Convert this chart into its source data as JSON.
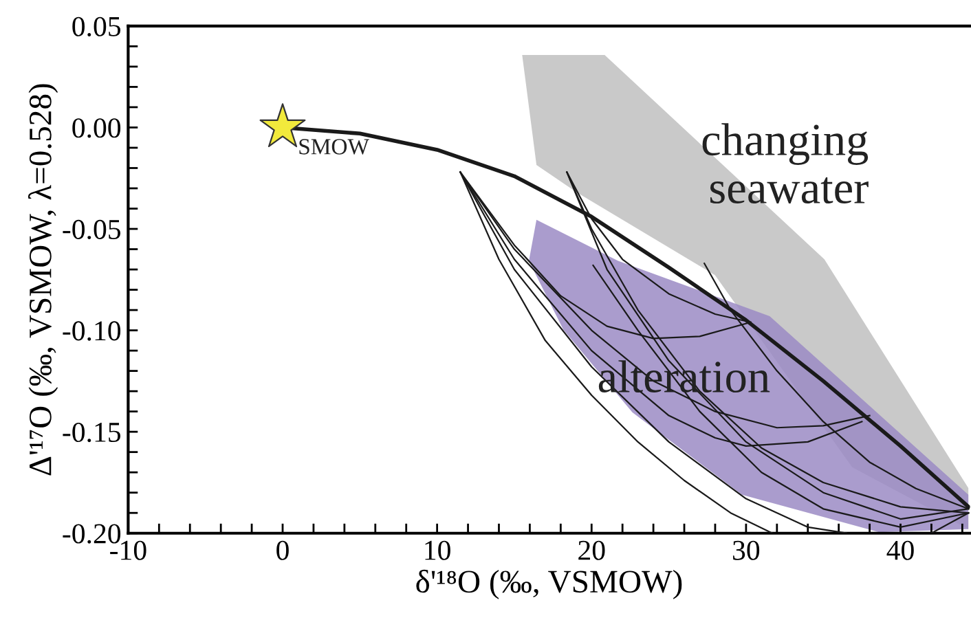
{
  "chart_data": {
    "type": "line",
    "xlabel": "δ'¹⁸O (‰, VSMOW)",
    "ylabel": "Δ'¹⁷O (‰, VSMOW, λ=0.528)",
    "xlim": [
      -10,
      44.5
    ],
    "ylim": [
      -0.2,
      0.05
    ],
    "xticks": [
      -10,
      {
        "value": -8,
        "label": null
      },
      {
        "value": -6,
        "label": null
      },
      {
        "value": -4,
        "label": null
      },
      {
        "value": -2,
        "label": null
      },
      0,
      {
        "value": 2,
        "label": null
      },
      {
        "value": 4,
        "label": null
      },
      {
        "value": 6,
        "label": null
      },
      {
        "value": 8,
        "label": null
      },
      10,
      {
        "value": 12,
        "label": null
      },
      {
        "value": 14,
        "label": null
      },
      {
        "value": 16,
        "label": null
      },
      {
        "value": 18,
        "label": null
      },
      20,
      {
        "value": 22,
        "label": null
      },
      {
        "value": 24,
        "label": null
      },
      {
        "value": 26,
        "label": null
      },
      {
        "value": 28,
        "label": null
      },
      30,
      {
        "value": 32,
        "label": null
      },
      {
        "value": 34,
        "label": null
      },
      {
        "value": 36,
        "label": null
      },
      {
        "value": 38,
        "label": null
      },
      40,
      {
        "value": 42,
        "label": null
      },
      {
        "value": 44,
        "label": null
      }
    ],
    "yticks": [
      {
        "value": -0.2,
        "label": "-0.20"
      },
      {
        "value": -0.19,
        "label": null
      },
      {
        "value": -0.18,
        "label": null
      },
      {
        "value": -0.17,
        "label": null
      },
      {
        "value": -0.16,
        "label": null
      },
      {
        "value": -0.15,
        "label": "-0.15"
      },
      {
        "value": -0.14,
        "label": null
      },
      {
        "value": -0.13,
        "label": null
      },
      {
        "value": -0.12,
        "label": null
      },
      {
        "value": -0.11,
        "label": null
      },
      {
        "value": -0.1,
        "label": "-0.10"
      },
      {
        "value": -0.09,
        "label": null
      },
      {
        "value": -0.08,
        "label": null
      },
      {
        "value": -0.07,
        "label": null
      },
      {
        "value": -0.06,
        "label": null
      },
      {
        "value": -0.05,
        "label": "-0.05"
      },
      {
        "value": -0.04,
        "label": null
      },
      {
        "value": -0.03,
        "label": null
      },
      {
        "value": -0.02,
        "label": null
      },
      {
        "value": -0.01,
        "label": null
      },
      {
        "value": 0.0,
        "label": "0.00"
      },
      {
        "value": 0.01,
        "label": null
      },
      {
        "value": 0.02,
        "label": null
      },
      {
        "value": 0.03,
        "label": null
      },
      {
        "value": 0.04,
        "label": null
      },
      {
        "value": 0.05,
        "label": "0.05"
      }
    ],
    "grid": false,
    "legend": false,
    "series": [
      {
        "color": "#1a1a1a",
        "line_style": "solid",
        "x": [
          0,
          5,
          10,
          15,
          20,
          25,
          30,
          35,
          40,
          44.4
        ],
        "values": [
          0,
          -0.003,
          -0.011,
          -0.024,
          -0.044,
          -0.069,
          -0.095,
          -0.125,
          -0.157,
          -0.187
        ]
      },
      {
        "color": "#1a1a1a",
        "x": [
          11.5,
          14,
          17,
          20,
          23,
          26,
          29,
          31.7
        ],
        "values": [
          -0.022,
          -0.065,
          -0.105,
          -0.132,
          -0.155,
          -0.174,
          -0.19,
          -0.2
        ]
      },
      {
        "color": "#1a1a1a",
        "x": [
          11.5,
          15,
          20,
          25,
          30,
          34,
          36.5,
          40,
          42,
          44.4
        ],
        "values": [
          -0.022,
          -0.07,
          -0.118,
          -0.155,
          -0.183,
          -0.197,
          -0.2,
          null,
          -0.2,
          -0.19
        ]
      },
      {
        "color": "#1a1a1a",
        "x": [
          11.5,
          15,
          20,
          25,
          28,
          30,
          34,
          37.5
        ],
        "values": [
          -0.022,
          -0.065,
          -0.11,
          -0.142,
          -0.153,
          -0.157,
          -0.155,
          -0.145
        ]
      },
      {
        "color": "#1a1a1a",
        "x": [
          11.5,
          15,
          20,
          24,
          28,
          32,
          35,
          38
        ],
        "values": [
          -0.022,
          -0.06,
          -0.1,
          -0.125,
          -0.14,
          -0.148,
          -0.147,
          -0.142
        ]
      },
      {
        "color": "#1a1a1a",
        "x": [
          11.5,
          15,
          18,
          21,
          24,
          27,
          30.3
        ],
        "values": [
          -0.022,
          -0.058,
          -0.083,
          -0.098,
          -0.104,
          -0.103,
          -0.096
        ]
      },
      {
        "color": "#1a1a1a",
        "x": [
          18.4,
          20,
          22,
          25,
          28,
          30.3
        ],
        "values": [
          -0.022,
          -0.045,
          -0.065,
          -0.082,
          -0.092,
          -0.096
        ]
      },
      {
        "color": "#1a1a1a",
        "x": [
          18.4,
          20,
          23,
          27,
          31,
          35,
          40,
          44.4
        ],
        "values": [
          -0.022,
          -0.05,
          -0.09,
          -0.13,
          -0.158,
          -0.175,
          -0.187,
          -0.19
        ]
      },
      {
        "color": "#1a1a1a",
        "x": [
          18.4,
          21,
          25,
          30,
          35,
          40,
          44.4
        ],
        "values": [
          -0.022,
          -0.07,
          -0.115,
          -0.155,
          -0.18,
          -0.193,
          -0.188
        ]
      },
      {
        "color": "#1a1a1a",
        "x": [
          20.1,
          23,
          27,
          31,
          35,
          40,
          44.4
        ],
        "values": [
          -0.068,
          -0.1,
          -0.14,
          -0.17,
          -0.188,
          -0.197,
          -0.19
        ]
      },
      {
        "color": "#1a1a1a",
        "x": [
          27.3,
          29,
          32,
          35,
          38,
          41,
          44.4
        ],
        "values": [
          -0.067,
          -0.09,
          -0.12,
          -0.145,
          -0.165,
          -0.178,
          -0.188
        ]
      },
      {
        "name": "SMOW",
        "type": "scatter",
        "marker": "star",
        "color": "#f2ea3c",
        "x": [
          0
        ],
        "values": [
          0
        ]
      }
    ],
    "annotations": [
      "changing\nseawater",
      "alteration"
    ]
  }
}
